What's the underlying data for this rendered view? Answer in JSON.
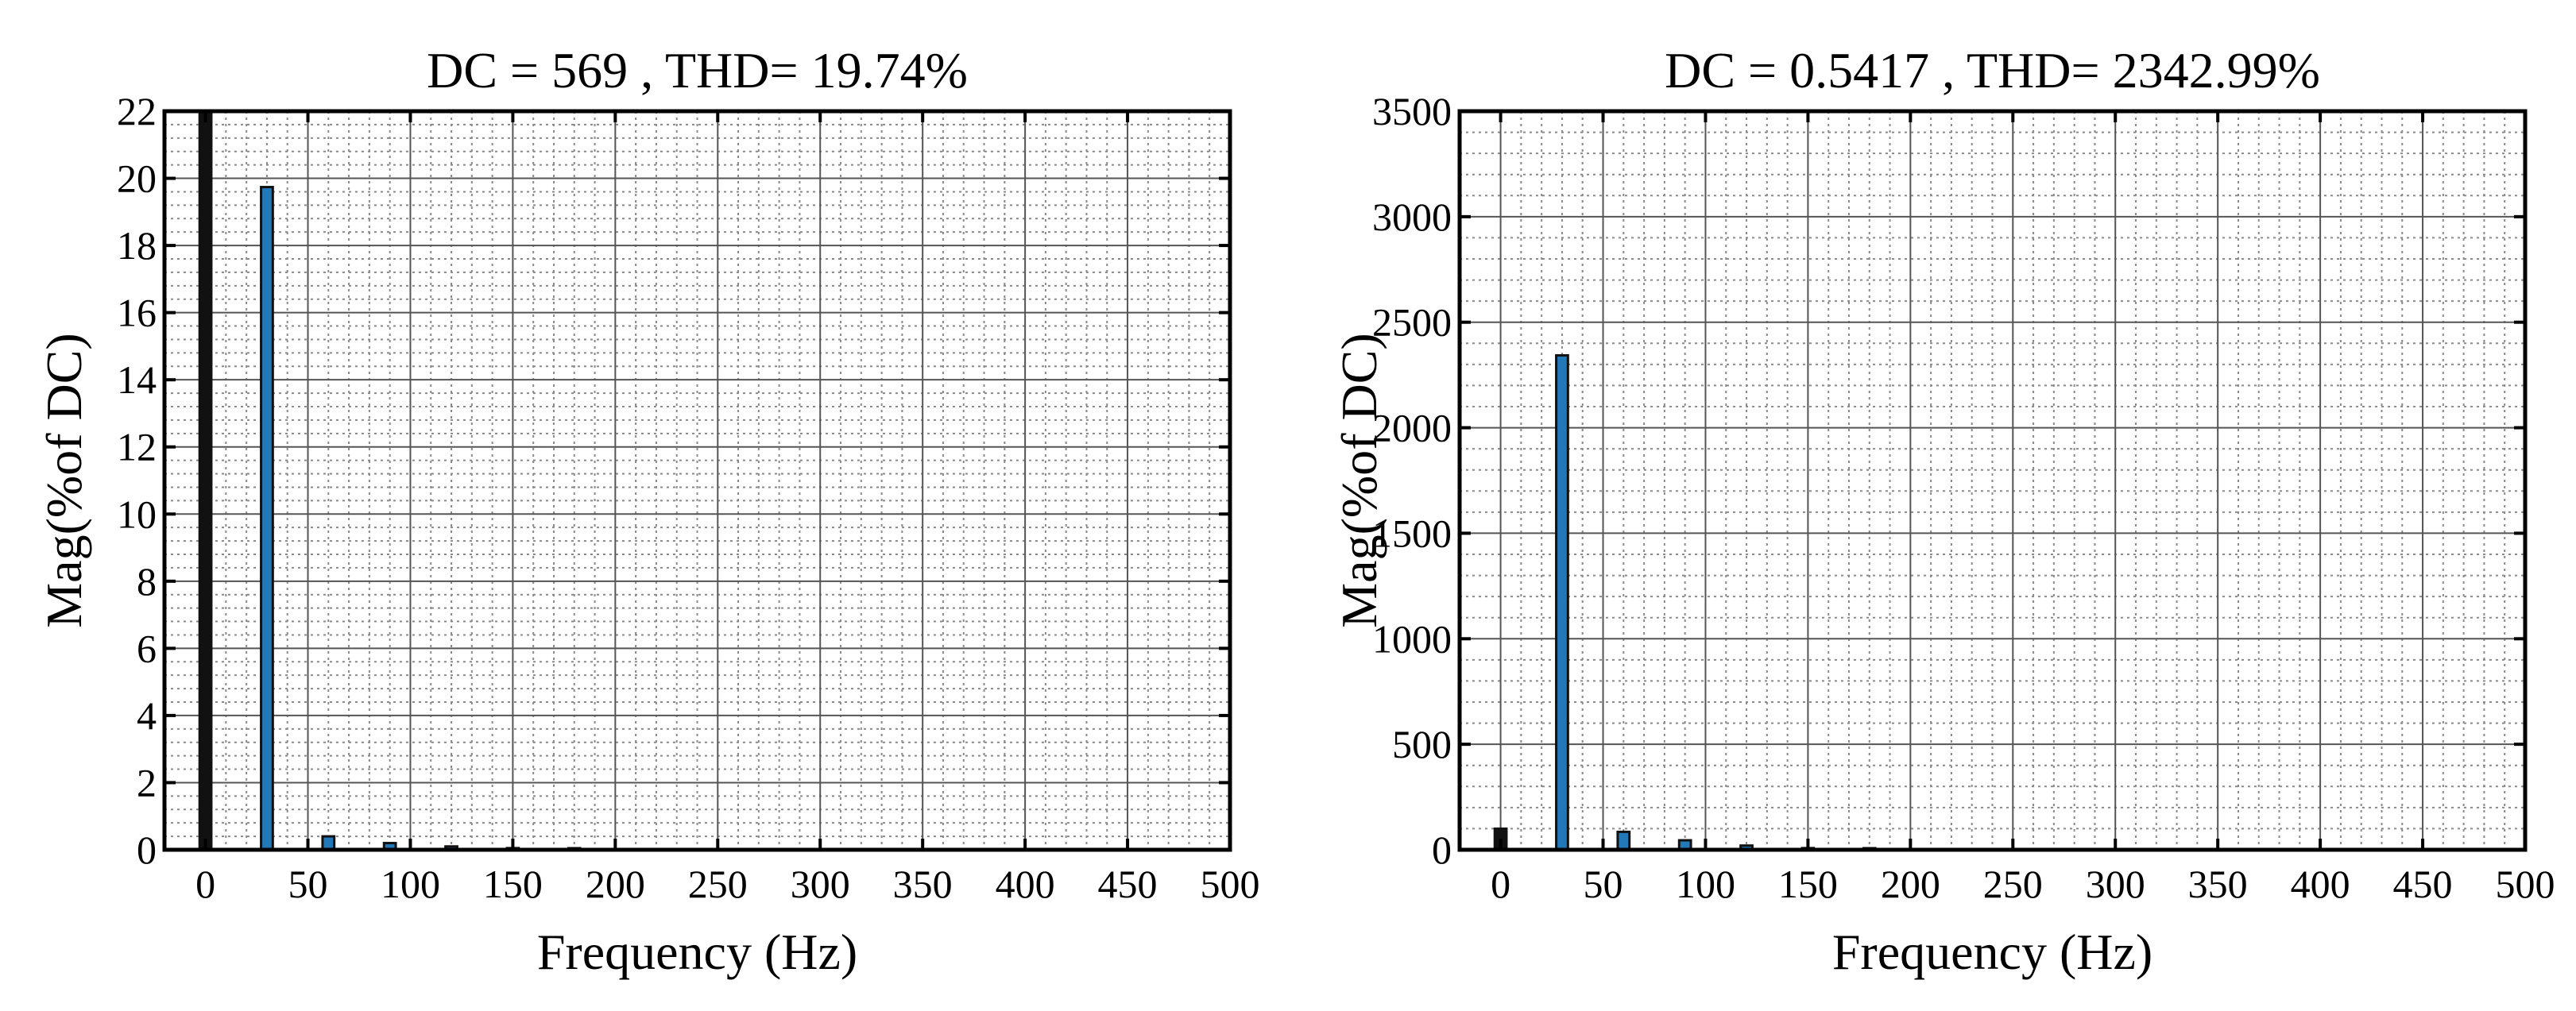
{
  "chart_data": [
    {
      "type": "bar",
      "title": "DC = 569 , THD= 19.74%",
      "xlabel": "Frequency (Hz)",
      "ylabel": "Mag(%of DC)",
      "xlim": [
        -20,
        500
      ],
      "ylim": [
        0,
        22
      ],
      "xticks": [
        0,
        50,
        100,
        150,
        200,
        250,
        300,
        350,
        400,
        450,
        500
      ],
      "yticks": [
        0,
        2,
        4,
        6,
        8,
        10,
        12,
        14,
        16,
        18,
        20,
        22
      ],
      "grid": true,
      "bar_color": "#2378b8",
      "dc_bar_color": "#111111",
      "bars": [
        {
          "x": 0,
          "value": 22,
          "dc": true
        },
        {
          "x": 30,
          "value": 19.74
        },
        {
          "x": 60,
          "value": 0.4
        },
        {
          "x": 90,
          "value": 0.2
        },
        {
          "x": 120,
          "value": 0.1
        },
        {
          "x": 150,
          "value": 0.05
        },
        {
          "x": 180,
          "value": 0.03
        }
      ]
    },
    {
      "type": "bar",
      "title": "DC = 0.5417 , THD= 2342.99%",
      "xlabel": "Frequency (Hz)",
      "ylabel": "Mag(%of DC)",
      "xlim": [
        -20,
        500
      ],
      "ylim": [
        0,
        3500
      ],
      "xticks": [
        0,
        50,
        100,
        150,
        200,
        250,
        300,
        350,
        400,
        450,
        500
      ],
      "yticks": [
        0,
        500,
        1000,
        1500,
        2000,
        2500,
        3000,
        3500
      ],
      "grid": true,
      "bar_color": "#2378b8",
      "dc_bar_color": "#111111",
      "bars": [
        {
          "x": 0,
          "value": 100,
          "dc": true
        },
        {
          "x": 30,
          "value": 2342.99
        },
        {
          "x": 60,
          "value": 85
        },
        {
          "x": 90,
          "value": 45
        },
        {
          "x": 120,
          "value": 20
        },
        {
          "x": 150,
          "value": 8
        },
        {
          "x": 180,
          "value": 4
        }
      ]
    }
  ]
}
